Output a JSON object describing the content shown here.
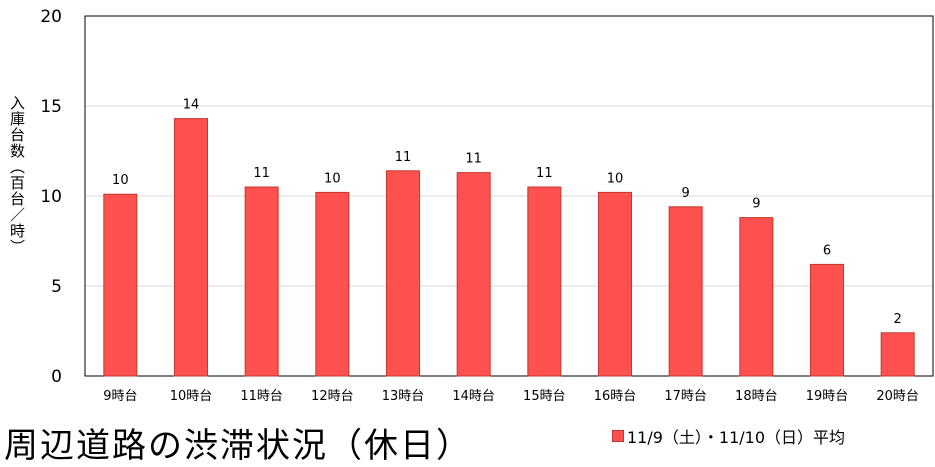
{
  "chart_data": {
    "type": "bar",
    "categories": [
      "9時台",
      "10時台",
      "11時台",
      "12時台",
      "13時台",
      "14時台",
      "15時台",
      "16時台",
      "17時台",
      "18時台",
      "19時台",
      "20時台"
    ],
    "values": [
      10.1,
      14.3,
      10.5,
      10.2,
      11.4,
      11.3,
      10.5,
      10.2,
      9.4,
      8.8,
      6.2,
      2.4
    ],
    "labels": [
      "10",
      "14",
      "11",
      "10",
      "11",
      "11",
      "11",
      "10",
      "9",
      "9",
      "6",
      "2"
    ],
    "ylabel": "入庫台数（百台／時）",
    "ylim": [
      0,
      20
    ],
    "yticks": [
      0,
      5,
      10,
      15,
      20
    ],
    "grid": true,
    "legend": "bottom-right",
    "series_name": "11/9（土）・11/10（日）平均",
    "bar_color": "#ff5050",
    "bar_border": "#c0392b"
  },
  "bottom_title": "周辺道路の渋滞状況（休日）"
}
